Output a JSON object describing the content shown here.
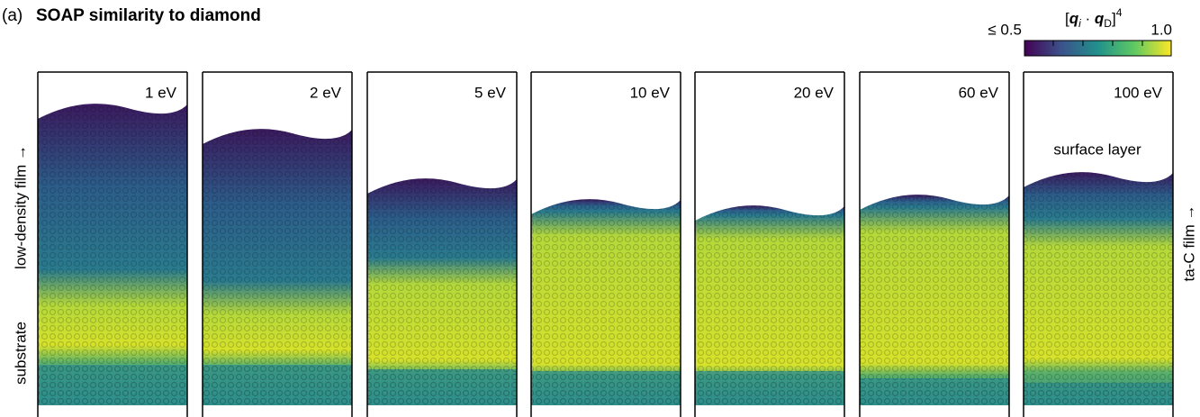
{
  "figure": {
    "label": "(a)",
    "title": "SOAP similarity to diamond",
    "colorbar": {
      "min_label": "≤ 0.5",
      "max_label": "1.0",
      "title_parts": [
        "[",
        "q",
        "i",
        " · ",
        "q",
        "D",
        "]",
        "4"
      ]
    },
    "left_labels": [
      "low-density film →",
      "substrate"
    ],
    "right_label": "ta-C film →",
    "annotation": "surface layer",
    "panels": [
      "1 eV",
      "2 eV",
      "5 eV",
      "10 eV",
      "20 eV",
      "60 eV",
      "100 eV"
    ]
  }
}
